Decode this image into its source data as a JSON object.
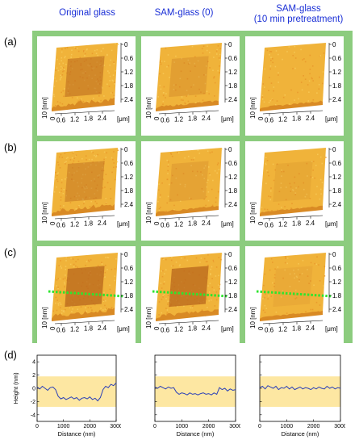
{
  "columns": [
    {
      "line1": "Original glass",
      "line2": ""
    },
    {
      "line1": "SAM-glass (0)",
      "line2": ""
    },
    {
      "line1": "SAM-glass",
      "line2": "(10 min pretreatment)"
    }
  ],
  "rows": [
    "(a)",
    "(b)",
    "(c)",
    "(d)"
  ],
  "afm": {
    "z_ticks": [
      "0",
      "0.6",
      "1.2",
      "1.8",
      "2.4"
    ],
    "x_ticks": [
      "0.6",
      "1.2",
      "1.8",
      "2.4"
    ],
    "x_unit": "[μm]",
    "y_ticks": [
      "10",
      "0"
    ],
    "y_unit": "[nm]"
  },
  "colors": {
    "heading": "#1a2fd6",
    "frame": "#8ccc7e",
    "band": "#fde7a2",
    "profile": "#2a3fb8",
    "scan_line": "#2ee52e"
  },
  "chart_data": [
    {
      "type": "line",
      "xlabel": "Distance (nm)",
      "ylabel": "Height (nm)",
      "xlim": [
        0,
        3000
      ],
      "ylim": [
        -5,
        5
      ],
      "xticks": [
        "0",
        "1000",
        "2000",
        "3000"
      ],
      "yticks": [
        "-4",
        "-2",
        "0",
        "2",
        "4"
      ],
      "band": [
        -2.8,
        1.8
      ],
      "x": [
        0,
        100,
        200,
        300,
        400,
        500,
        600,
        700,
        800,
        900,
        1000,
        1100,
        1200,
        1300,
        1400,
        1500,
        1600,
        1700,
        1800,
        1900,
        2000,
        2100,
        2200,
        2300,
        2400,
        2500,
        2600,
        2700,
        2800,
        2900,
        3000
      ],
      "y": [
        0.2,
        -0.1,
        0.3,
        0.0,
        -0.3,
        0.1,
        0.2,
        -0.2,
        -1.2,
        -1.6,
        -1.4,
        -1.7,
        -1.5,
        -1.3,
        -1.6,
        -1.4,
        -1.8,
        -1.5,
        -1.4,
        -1.6,
        -1.3,
        -1.7,
        -1.5,
        -1.9,
        -1.4,
        -0.2,
        0.3,
        0.1,
        0.6,
        0.4,
        0.8
      ]
    },
    {
      "type": "line",
      "xlabel": "Distance (nm)",
      "xlim": [
        0,
        3000
      ],
      "ylim": [
        -5,
        5
      ],
      "xticks": [
        "0",
        "1000",
        "2000",
        "3000"
      ],
      "band": [
        -2.8,
        1.8
      ],
      "x": [
        0,
        100,
        200,
        300,
        400,
        500,
        600,
        700,
        800,
        900,
        1000,
        1100,
        1200,
        1300,
        1400,
        1500,
        1600,
        1700,
        1800,
        1900,
        2000,
        2100,
        2200,
        2300,
        2400,
        2500,
        2600,
        2700,
        2800,
        2900,
        3000
      ],
      "y": [
        0.2,
        0.0,
        0.3,
        0.1,
        -0.1,
        0.2,
        0.0,
        0.1,
        -0.6,
        -0.9,
        -0.7,
        -0.8,
        -1.0,
        -0.7,
        -0.9,
        -0.8,
        -1.0,
        -0.8,
        -0.7,
        -0.9,
        -0.8,
        -1.0,
        -0.7,
        -0.9,
        0.1,
        -0.2,
        0.0,
        -0.4,
        -0.1,
        -0.3,
        -0.2
      ]
    },
    {
      "type": "line",
      "xlabel": "Distance (nm)",
      "xlim": [
        0,
        3000
      ],
      "ylim": [
        -5,
        5
      ],
      "xticks": [
        "0",
        "1000",
        "2000",
        "3000"
      ],
      "band": [
        -2.8,
        1.8
      ],
      "x": [
        0,
        100,
        200,
        300,
        400,
        500,
        600,
        700,
        800,
        900,
        1000,
        1100,
        1200,
        1300,
        1400,
        1500,
        1600,
        1700,
        1800,
        1900,
        2000,
        2100,
        2200,
        2300,
        2400,
        2500,
        2600,
        2700,
        2800,
        2900,
        3000
      ],
      "y": [
        0.1,
        0.3,
        -0.1,
        0.4,
        0.2,
        0.0,
        0.3,
        -0.2,
        0.1,
        0.0,
        0.3,
        -0.1,
        0.2,
        -0.2,
        0.0,
        0.2,
        -0.1,
        0.1,
        0.0,
        -0.2,
        0.1,
        -0.1,
        0.2,
        0.0,
        -0.1,
        0.3,
        0.0,
        0.2,
        -0.1,
        0.1,
        0.0
      ]
    }
  ]
}
